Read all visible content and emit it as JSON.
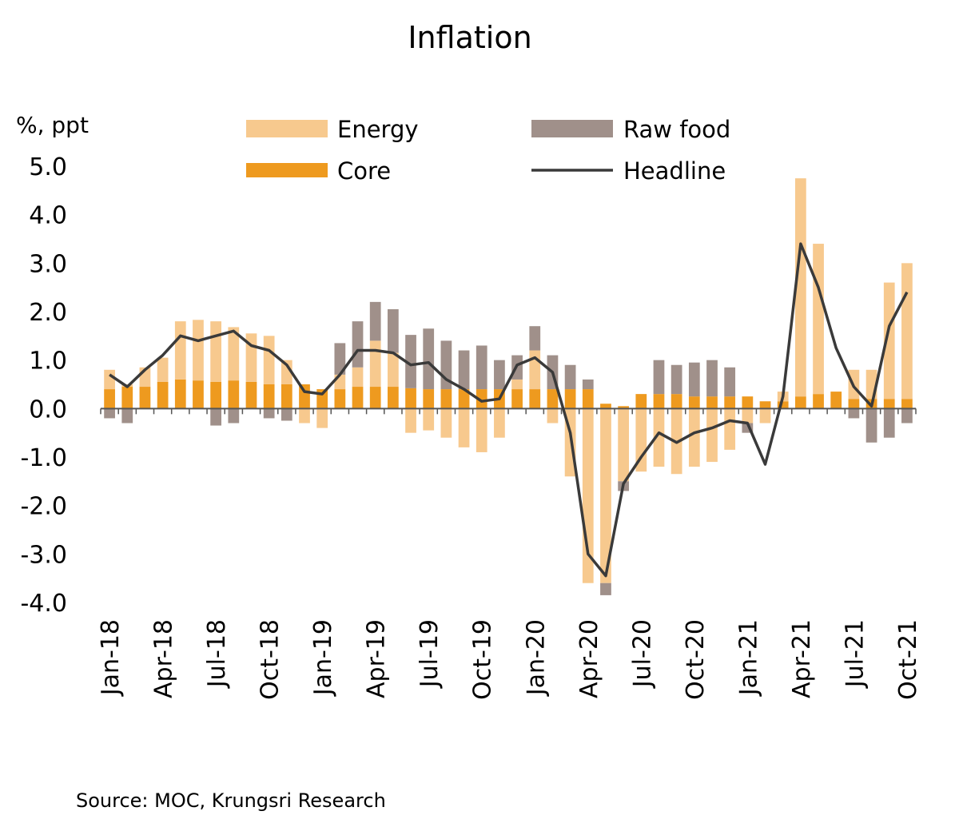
{
  "chart_data": {
    "type": "bar",
    "title": "Inflation",
    "ylabel": "%, ppt",
    "ylim": [
      -4.0,
      5.0
    ],
    "yticks": [
      "5.0",
      "4.0",
      "3.0",
      "2.0",
      "1.0",
      "0.0",
      "-1.0",
      "-2.0",
      "-3.0",
      "-4.0"
    ],
    "categories": [
      "Jan-18",
      "Feb-18",
      "Mar-18",
      "Apr-18",
      "May-18",
      "Jun-18",
      "Jul-18",
      "Aug-18",
      "Sep-18",
      "Oct-18",
      "Nov-18",
      "Dec-18",
      "Jan-19",
      "Feb-19",
      "Mar-19",
      "Apr-19",
      "May-19",
      "Jun-19",
      "Jul-19",
      "Aug-19",
      "Sep-19",
      "Oct-19",
      "Nov-19",
      "Dec-19",
      "Jan-20",
      "Feb-20",
      "Mar-20",
      "Apr-20",
      "May-20",
      "Jun-20",
      "Jul-20",
      "Aug-20",
      "Sep-20",
      "Oct-20",
      "Nov-20",
      "Dec-20",
      "Jan-21",
      "Feb-21",
      "Mar-21",
      "Apr-21",
      "May-21",
      "Jun-21",
      "Jul-21",
      "Aug-21",
      "Sep-21",
      "Oct-21"
    ],
    "xtick_labels": [
      "Jan-18",
      "Apr-18",
      "Jul-18",
      "Oct-18",
      "Jan-19",
      "Apr-19",
      "Jul-19",
      "Oct-19",
      "Jan-20",
      "Apr-20",
      "Jul-20",
      "Oct-20",
      "Jan-21",
      "Apr-21",
      "Jul-21",
      "Oct-21"
    ],
    "series": [
      {
        "name": "Core",
        "kind": "stacked-bar",
        "values": [
          0.4,
          0.45,
          0.45,
          0.55,
          0.6,
          0.58,
          0.55,
          0.58,
          0.55,
          0.5,
          0.5,
          0.5,
          0.4,
          0.4,
          0.45,
          0.45,
          0.45,
          0.42,
          0.4,
          0.4,
          0.4,
          0.4,
          0.4,
          0.4,
          0.4,
          0.4,
          0.4,
          0.4,
          0.1,
          0.05,
          0.3,
          0.3,
          0.3,
          0.25,
          0.25,
          0.25,
          0.25,
          0.15,
          0.15,
          0.25,
          0.3,
          0.35,
          0.2,
          0.2,
          0.2,
          0.2
        ]
      },
      {
        "name": "Energy",
        "kind": "stacked-bar",
        "values": [
          0.4,
          0.05,
          0.4,
          0.5,
          1.2,
          1.25,
          1.25,
          1.1,
          1.0,
          1.0,
          0.5,
          -0.3,
          -0.4,
          0.3,
          0.4,
          0.95,
          0.7,
          -0.5,
          -0.45,
          -0.6,
          -0.8,
          -0.9,
          -0.6,
          0.2,
          0.8,
          -0.3,
          -1.4,
          -3.6,
          -3.6,
          -1.5,
          -1.3,
          -1.2,
          -1.35,
          -1.2,
          -1.1,
          -0.85,
          -0.3,
          -0.3,
          0.2,
          4.5,
          3.1,
          0.0,
          0.6,
          0.6,
          2.4,
          2.8
        ]
      },
      {
        "name": "Raw food",
        "kind": "stacked-bar",
        "values": [
          -0.2,
          -0.3,
          0.0,
          0.0,
          0.0,
          0.0,
          -0.35,
          -0.3,
          0.0,
          -0.2,
          -0.25,
          0.0,
          0.0,
          0.65,
          0.95,
          0.8,
          0.9,
          1.1,
          1.25,
          1.0,
          0.8,
          0.9,
          0.6,
          0.5,
          0.5,
          0.7,
          0.5,
          0.2,
          -0.25,
          -0.2,
          0.0,
          0.7,
          0.6,
          0.7,
          0.75,
          0.6,
          -0.2,
          0.0,
          0.0,
          0.0,
          0.0,
          0.0,
          -0.2,
          -0.7,
          -0.6,
          -0.3
        ]
      },
      {
        "name": "Headline",
        "kind": "line",
        "values": [
          0.7,
          0.45,
          0.8,
          1.1,
          1.5,
          1.4,
          1.5,
          1.6,
          1.3,
          1.2,
          0.9,
          0.35,
          0.3,
          0.7,
          1.2,
          1.2,
          1.15,
          0.9,
          0.95,
          0.6,
          0.4,
          0.15,
          0.2,
          0.9,
          1.05,
          0.75,
          -0.5,
          -3.0,
          -3.45,
          -1.55,
          -1.0,
          -0.5,
          -0.7,
          -0.5,
          -0.4,
          -0.25,
          -0.3,
          -1.15,
          0.25,
          3.4,
          2.5,
          1.25,
          0.45,
          0.05,
          1.7,
          2.4
        ]
      }
    ],
    "legend": [
      {
        "name": "Energy",
        "color": "#F7C98E",
        "kind": "bar"
      },
      {
        "name": "Raw food",
        "color": "#A0908A",
        "kind": "bar"
      },
      {
        "name": "Core",
        "color": "#EE9A1F",
        "kind": "bar"
      },
      {
        "name": "Headline",
        "color": "#3A3A3A",
        "kind": "line"
      }
    ],
    "legend_position": "top",
    "grid": false,
    "colors": {
      "core": "#EE9A1F",
      "energy": "#F7C98E",
      "rawfood": "#A0908A",
      "headline": "#3A3A3A",
      "axis": "#555555"
    },
    "source": "Source:  MOC, Krungsri Research"
  }
}
